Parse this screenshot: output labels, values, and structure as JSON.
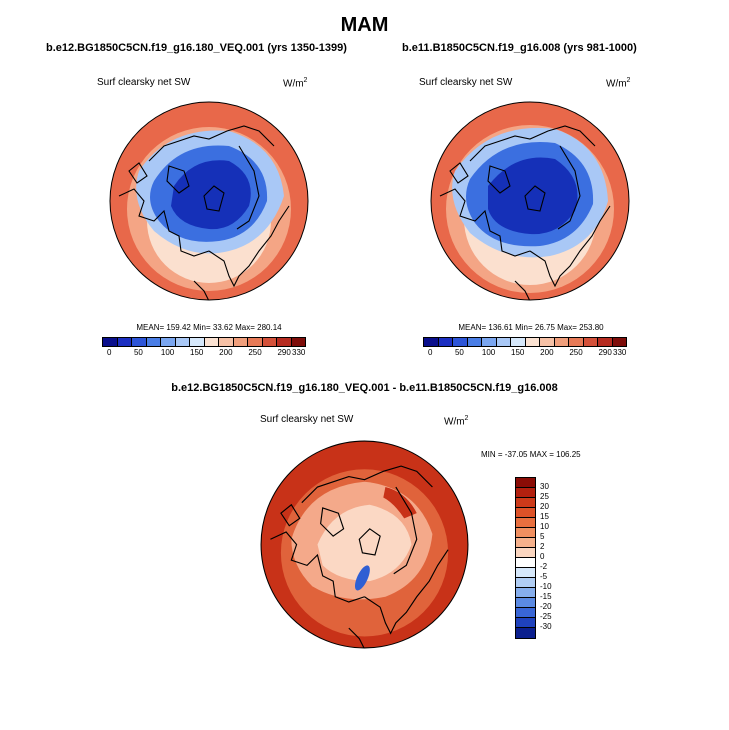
{
  "main_title": "MAM",
  "panels": [
    {
      "run_title": "b.e12.BG1850C5CN.f19_g16.180_VEQ.001 (yrs 1350-1399)",
      "variable": "Surf clearsky net SW",
      "units_base": "W/m",
      "units_exp": "2",
      "stats": "MEAN= 159.42  Min=  33.62  Max= 280.14"
    },
    {
      "run_title": "b.e11.B1850C5CN.f19_g16.008 (yrs 981-1000)",
      "variable": "Surf clearsky net SW",
      "units_base": "W/m",
      "units_exp": "2",
      "stats": "MEAN= 136.61  Min=  26.75  Max= 253.80"
    }
  ],
  "abs_colorbar": {
    "colors": [
      "#0a0f8c",
      "#1c2fc2",
      "#2d55d8",
      "#4a7ee6",
      "#7aa6f0",
      "#a9c8f6",
      "#d6e8fb",
      "#fbe2d2",
      "#f6c1a6",
      "#f09f7c",
      "#e77a57",
      "#d4513a",
      "#b62b20",
      "#7e0d0a"
    ],
    "labels": [
      "0",
      "50",
      "100",
      "150",
      "200",
      "250",
      "290",
      "330"
    ]
  },
  "diff_panel": {
    "run_title": "b.e12.BG1850C5CN.f19_g16.180_VEQ.001 - b.e11.B1850C5CN.f19_g16.008",
    "variable": "Surf clearsky net SW",
    "units_base": "W/m",
    "units_exp": "2",
    "stats": "MIN = -37.05 MAX = 106.25"
  },
  "diff_colorbar": {
    "colors": [
      "#8a0c06",
      "#b2200f",
      "#cc3a1a",
      "#dd5228",
      "#e86f3f",
      "#f08f60",
      "#f6b18c",
      "#fbd6c0",
      "#ffffff",
      "#d6e8fb",
      "#b0cdf4",
      "#86aeed",
      "#5b8ae3",
      "#3966d6",
      "#1f42bd",
      "#0b1f8e"
    ],
    "labels": [
      "30",
      "25",
      "20",
      "15",
      "10",
      "5",
      "2",
      "0",
      "-2",
      "-5",
      "-10",
      "-15",
      "-20",
      "-25",
      "-30"
    ]
  },
  "map_colors": {
    "land_outline": "#000000",
    "abs_outer": "#e8684a",
    "abs_mid": "#f4a585",
    "abs_inner": "#fbe0cf",
    "abs_ice_light": "#a9c8f6",
    "abs_ice": "#3b6fe0",
    "abs_ice_dark": "#1530b8",
    "diff_outer": "#c83218",
    "diff_mid": "#e0633b",
    "diff_inner": "#f4a98a",
    "diff_center": "#fbd8c4",
    "diff_neg": "#2f5fd3"
  }
}
